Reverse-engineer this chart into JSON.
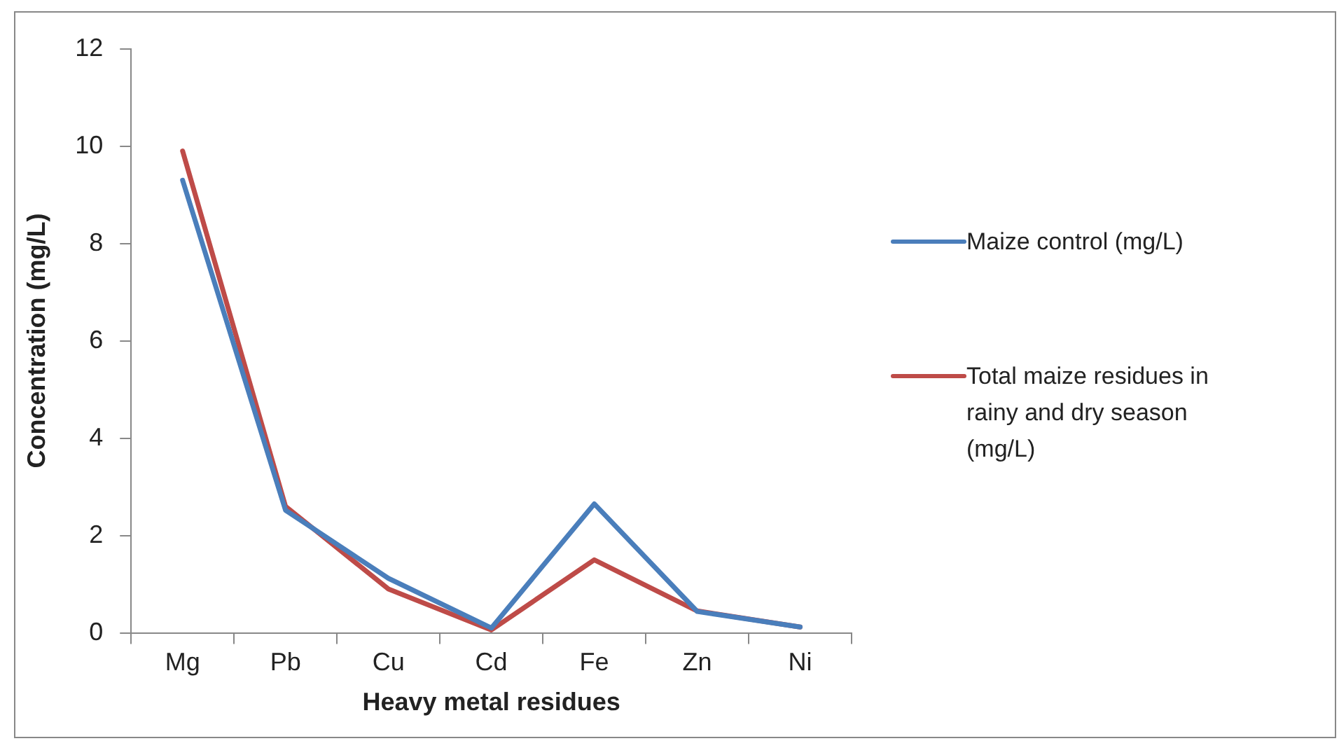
{
  "chart_data": {
    "type": "line",
    "xlabel": "Heavy metal residues",
    "ylabel": "Concentration (mg/L)",
    "categories": [
      "Mg",
      "Pb",
      "Cu",
      "Cd",
      "Fe",
      "Zn",
      "Ni"
    ],
    "series": [
      {
        "name": "Maize control (mg/L)",
        "color": "#4a7ebb",
        "values": [
          9.3,
          2.52,
          1.12,
          0.1,
          2.65,
          0.44,
          0.12
        ]
      },
      {
        "name": "Total maize residues in rainy and dry season (mg/L)",
        "color": "#be4b48",
        "values": [
          9.9,
          2.6,
          0.9,
          0.06,
          1.5,
          0.45,
          0.12
        ]
      }
    ],
    "ylim": [
      0,
      12
    ],
    "yticks": [
      0,
      2,
      4,
      6,
      8,
      10,
      12
    ],
    "grid": false,
    "legend": "right",
    "marker": "none",
    "line_style": "solid"
  }
}
